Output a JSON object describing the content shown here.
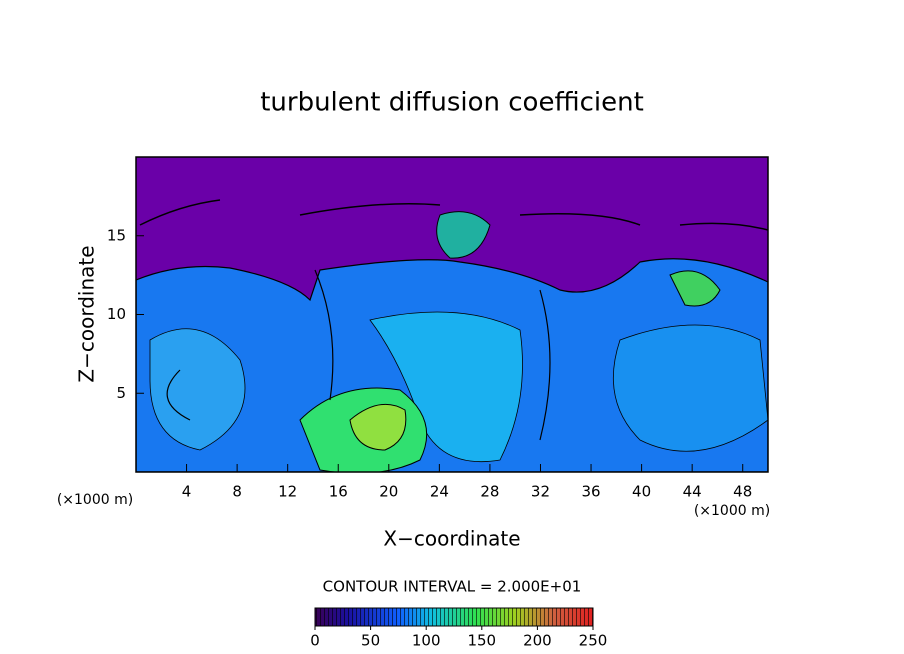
{
  "chart_data": {
    "type": "contour",
    "title": "turbulent diffusion coefficient",
    "x_label": "X−coordinate",
    "y_label": "Z−coordinate",
    "x_unit": "(×1000 m)",
    "y_unit": "(×1000 m)",
    "xlim": [
      0,
      50
    ],
    "xticks": [
      4,
      8,
      12,
      16,
      20,
      24,
      28,
      32,
      36,
      40,
      44,
      48
    ],
    "ylim": [
      0,
      20
    ],
    "yticks": [
      5,
      10,
      15
    ],
    "annotation": "CONTOUR INTERVAL = 2.000E+01",
    "colorbar": {
      "lim": [
        0,
        250
      ],
      "ticks": [
        0,
        50,
        100,
        150,
        200,
        250
      ]
    }
  }
}
